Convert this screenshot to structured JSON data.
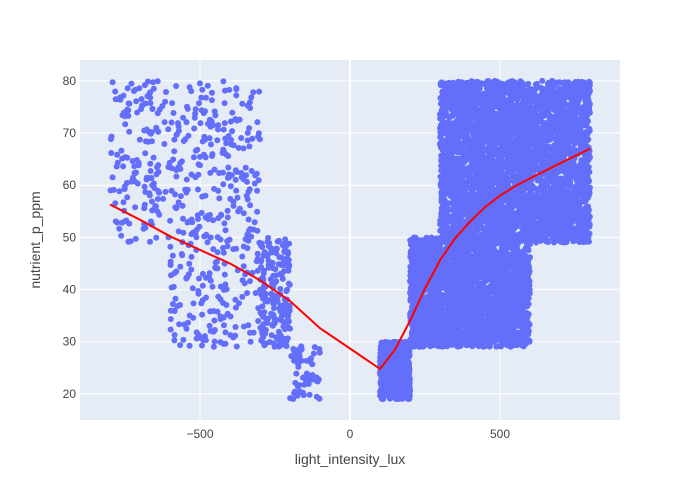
{
  "chart_data": {
    "type": "scatter",
    "xlabel": "light_intensity_lux",
    "ylabel": "nutrient_p_ppm",
    "xlim": [
      -900,
      900
    ],
    "ylim": [
      15,
      84
    ],
    "x_ticks": [
      -500,
      0,
      500
    ],
    "x_tick_labels": [
      "−500",
      "0",
      "500"
    ],
    "y_ticks": [
      20,
      30,
      40,
      50,
      60,
      70,
      80
    ],
    "y_tick_labels": [
      "20",
      "30",
      "40",
      "50",
      "60",
      "70",
      "80"
    ],
    "grid": true,
    "legend": "none",
    "colors": {
      "points": "#636efa",
      "trend": "#ff0000",
      "plot_bg": "#e5ecf6",
      "grid": "#ffffff"
    },
    "series": [
      {
        "mode": "markers",
        "clusters": [
          {
            "x_range": [
              -800,
              -600
            ],
            "y_range": [
              49,
              80
            ],
            "count": 150
          },
          {
            "x_range": [
              -600,
              -400
            ],
            "y_range": [
              29,
              80
            ],
            "count": 260
          },
          {
            "x_range": [
              -400,
              -300
            ],
            "y_range": [
              29,
              80
            ],
            "count": 110
          },
          {
            "x_range": [
              -300,
              -200
            ],
            "y_range": [
              29,
              50
            ],
            "count": 200
          },
          {
            "x_range": [
              -200,
              -100
            ],
            "y_range": [
              19,
              30
            ],
            "count": 60
          },
          {
            "x_range": [
              100,
              200
            ],
            "y_range": [
              19,
              30
            ],
            "count": 900
          },
          {
            "x_range": [
              200,
              600
            ],
            "y_range": [
              29,
              50
            ],
            "count": 2600
          },
          {
            "x_range": [
              300,
              800
            ],
            "y_range": [
              49,
              80
            ],
            "count": 3800
          }
        ]
      },
      {
        "mode": "lines",
        "x": [
          -800,
          -700,
          -600,
          -500,
          -400,
          -300,
          -200,
          -100,
          0,
          100,
          150,
          200,
          250,
          300,
          350,
          400,
          450,
          500,
          550,
          600,
          700,
          800
        ],
        "y": [
          56.3,
          53.4,
          50.2,
          47.6,
          45.0,
          41.8,
          37.8,
          32.6,
          28.7,
          24.8,
          28.5,
          34.0,
          40.2,
          45.6,
          49.8,
          53.0,
          55.8,
          58.0,
          59.8,
          61.3,
          64.2,
          67.0
        ]
      }
    ]
  }
}
